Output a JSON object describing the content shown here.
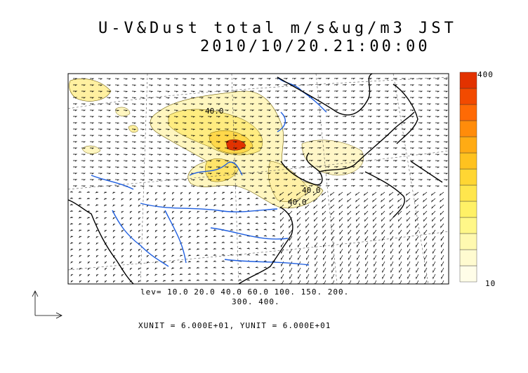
{
  "title": "U-V&Dust total m/s&ug/m3 JST",
  "datetime": "2010/10/20.21:00:00",
  "contour_labels": [
    "40.0",
    "40.0",
    "40.0"
  ],
  "levels_line1": "lev= 10.0 20.0 40.0 60.0 100. 150. 200.",
  "levels_line2": "300. 400.",
  "units_line": "XUNIT = 6.000E+01, YUNIT = 6.000E+01",
  "colorbar": {
    "max_label": "400",
    "min_label": "10",
    "colors": [
      "#fffde8",
      "#fffbd0",
      "#fff9b0",
      "#fff788",
      "#fff166",
      "#ffe64d",
      "#ffd633",
      "#ffc21f",
      "#ffab14",
      "#ff8c0a",
      "#ff6a05",
      "#f24a00",
      "#e23200"
    ]
  },
  "colors": {
    "coast": "#000000",
    "river": "#1f5fe0",
    "dust_low": "#fff6b5",
    "dust_high": "#e23200"
  }
}
